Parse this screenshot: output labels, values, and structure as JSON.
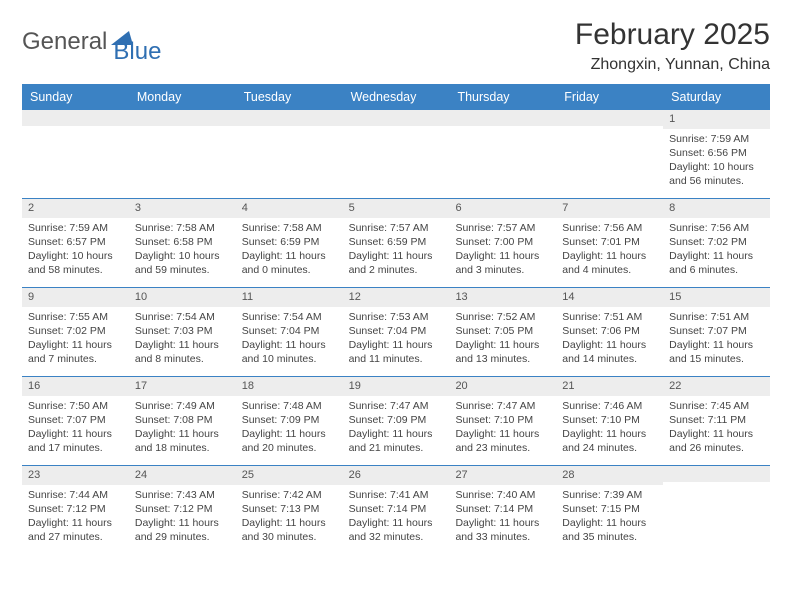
{
  "logo": {
    "part1": "General",
    "part2": "Blue"
  },
  "title": "February 2025",
  "location": "Zhongxin, Yunnan, China",
  "dayHeaders": [
    "Sunday",
    "Monday",
    "Tuesday",
    "Wednesday",
    "Thursday",
    "Friday",
    "Saturday"
  ],
  "colors": {
    "headerBg": "#3b82c4",
    "headerText": "#ffffff",
    "grey": "#ededed",
    "rule": "#3b82c4"
  },
  "weeks": [
    [
      {
        "n": "",
        "sunrise": "",
        "sunset": "",
        "daylight": ""
      },
      {
        "n": "",
        "sunrise": "",
        "sunset": "",
        "daylight": ""
      },
      {
        "n": "",
        "sunrise": "",
        "sunset": "",
        "daylight": ""
      },
      {
        "n": "",
        "sunrise": "",
        "sunset": "",
        "daylight": ""
      },
      {
        "n": "",
        "sunrise": "",
        "sunset": "",
        "daylight": ""
      },
      {
        "n": "",
        "sunrise": "",
        "sunset": "",
        "daylight": ""
      },
      {
        "n": "1",
        "sunrise": "Sunrise: 7:59 AM",
        "sunset": "Sunset: 6:56 PM",
        "daylight": "Daylight: 10 hours and 56 minutes."
      }
    ],
    [
      {
        "n": "2",
        "sunrise": "Sunrise: 7:59 AM",
        "sunset": "Sunset: 6:57 PM",
        "daylight": "Daylight: 10 hours and 58 minutes."
      },
      {
        "n": "3",
        "sunrise": "Sunrise: 7:58 AM",
        "sunset": "Sunset: 6:58 PM",
        "daylight": "Daylight: 10 hours and 59 minutes."
      },
      {
        "n": "4",
        "sunrise": "Sunrise: 7:58 AM",
        "sunset": "Sunset: 6:59 PM",
        "daylight": "Daylight: 11 hours and 0 minutes."
      },
      {
        "n": "5",
        "sunrise": "Sunrise: 7:57 AM",
        "sunset": "Sunset: 6:59 PM",
        "daylight": "Daylight: 11 hours and 2 minutes."
      },
      {
        "n": "6",
        "sunrise": "Sunrise: 7:57 AM",
        "sunset": "Sunset: 7:00 PM",
        "daylight": "Daylight: 11 hours and 3 minutes."
      },
      {
        "n": "7",
        "sunrise": "Sunrise: 7:56 AM",
        "sunset": "Sunset: 7:01 PM",
        "daylight": "Daylight: 11 hours and 4 minutes."
      },
      {
        "n": "8",
        "sunrise": "Sunrise: 7:56 AM",
        "sunset": "Sunset: 7:02 PM",
        "daylight": "Daylight: 11 hours and 6 minutes."
      }
    ],
    [
      {
        "n": "9",
        "sunrise": "Sunrise: 7:55 AM",
        "sunset": "Sunset: 7:02 PM",
        "daylight": "Daylight: 11 hours and 7 minutes."
      },
      {
        "n": "10",
        "sunrise": "Sunrise: 7:54 AM",
        "sunset": "Sunset: 7:03 PM",
        "daylight": "Daylight: 11 hours and 8 minutes."
      },
      {
        "n": "11",
        "sunrise": "Sunrise: 7:54 AM",
        "sunset": "Sunset: 7:04 PM",
        "daylight": "Daylight: 11 hours and 10 minutes."
      },
      {
        "n": "12",
        "sunrise": "Sunrise: 7:53 AM",
        "sunset": "Sunset: 7:04 PM",
        "daylight": "Daylight: 11 hours and 11 minutes."
      },
      {
        "n": "13",
        "sunrise": "Sunrise: 7:52 AM",
        "sunset": "Sunset: 7:05 PM",
        "daylight": "Daylight: 11 hours and 13 minutes."
      },
      {
        "n": "14",
        "sunrise": "Sunrise: 7:51 AM",
        "sunset": "Sunset: 7:06 PM",
        "daylight": "Daylight: 11 hours and 14 minutes."
      },
      {
        "n": "15",
        "sunrise": "Sunrise: 7:51 AM",
        "sunset": "Sunset: 7:07 PM",
        "daylight": "Daylight: 11 hours and 15 minutes."
      }
    ],
    [
      {
        "n": "16",
        "sunrise": "Sunrise: 7:50 AM",
        "sunset": "Sunset: 7:07 PM",
        "daylight": "Daylight: 11 hours and 17 minutes."
      },
      {
        "n": "17",
        "sunrise": "Sunrise: 7:49 AM",
        "sunset": "Sunset: 7:08 PM",
        "daylight": "Daylight: 11 hours and 18 minutes."
      },
      {
        "n": "18",
        "sunrise": "Sunrise: 7:48 AM",
        "sunset": "Sunset: 7:09 PM",
        "daylight": "Daylight: 11 hours and 20 minutes."
      },
      {
        "n": "19",
        "sunrise": "Sunrise: 7:47 AM",
        "sunset": "Sunset: 7:09 PM",
        "daylight": "Daylight: 11 hours and 21 minutes."
      },
      {
        "n": "20",
        "sunrise": "Sunrise: 7:47 AM",
        "sunset": "Sunset: 7:10 PM",
        "daylight": "Daylight: 11 hours and 23 minutes."
      },
      {
        "n": "21",
        "sunrise": "Sunrise: 7:46 AM",
        "sunset": "Sunset: 7:10 PM",
        "daylight": "Daylight: 11 hours and 24 minutes."
      },
      {
        "n": "22",
        "sunrise": "Sunrise: 7:45 AM",
        "sunset": "Sunset: 7:11 PM",
        "daylight": "Daylight: 11 hours and 26 minutes."
      }
    ],
    [
      {
        "n": "23",
        "sunrise": "Sunrise: 7:44 AM",
        "sunset": "Sunset: 7:12 PM",
        "daylight": "Daylight: 11 hours and 27 minutes."
      },
      {
        "n": "24",
        "sunrise": "Sunrise: 7:43 AM",
        "sunset": "Sunset: 7:12 PM",
        "daylight": "Daylight: 11 hours and 29 minutes."
      },
      {
        "n": "25",
        "sunrise": "Sunrise: 7:42 AM",
        "sunset": "Sunset: 7:13 PM",
        "daylight": "Daylight: 11 hours and 30 minutes."
      },
      {
        "n": "26",
        "sunrise": "Sunrise: 7:41 AM",
        "sunset": "Sunset: 7:14 PM",
        "daylight": "Daylight: 11 hours and 32 minutes."
      },
      {
        "n": "27",
        "sunrise": "Sunrise: 7:40 AM",
        "sunset": "Sunset: 7:14 PM",
        "daylight": "Daylight: 11 hours and 33 minutes."
      },
      {
        "n": "28",
        "sunrise": "Sunrise: 7:39 AM",
        "sunset": "Sunset: 7:15 PM",
        "daylight": "Daylight: 11 hours and 35 minutes."
      },
      {
        "n": "",
        "sunrise": "",
        "sunset": "",
        "daylight": ""
      }
    ]
  ]
}
